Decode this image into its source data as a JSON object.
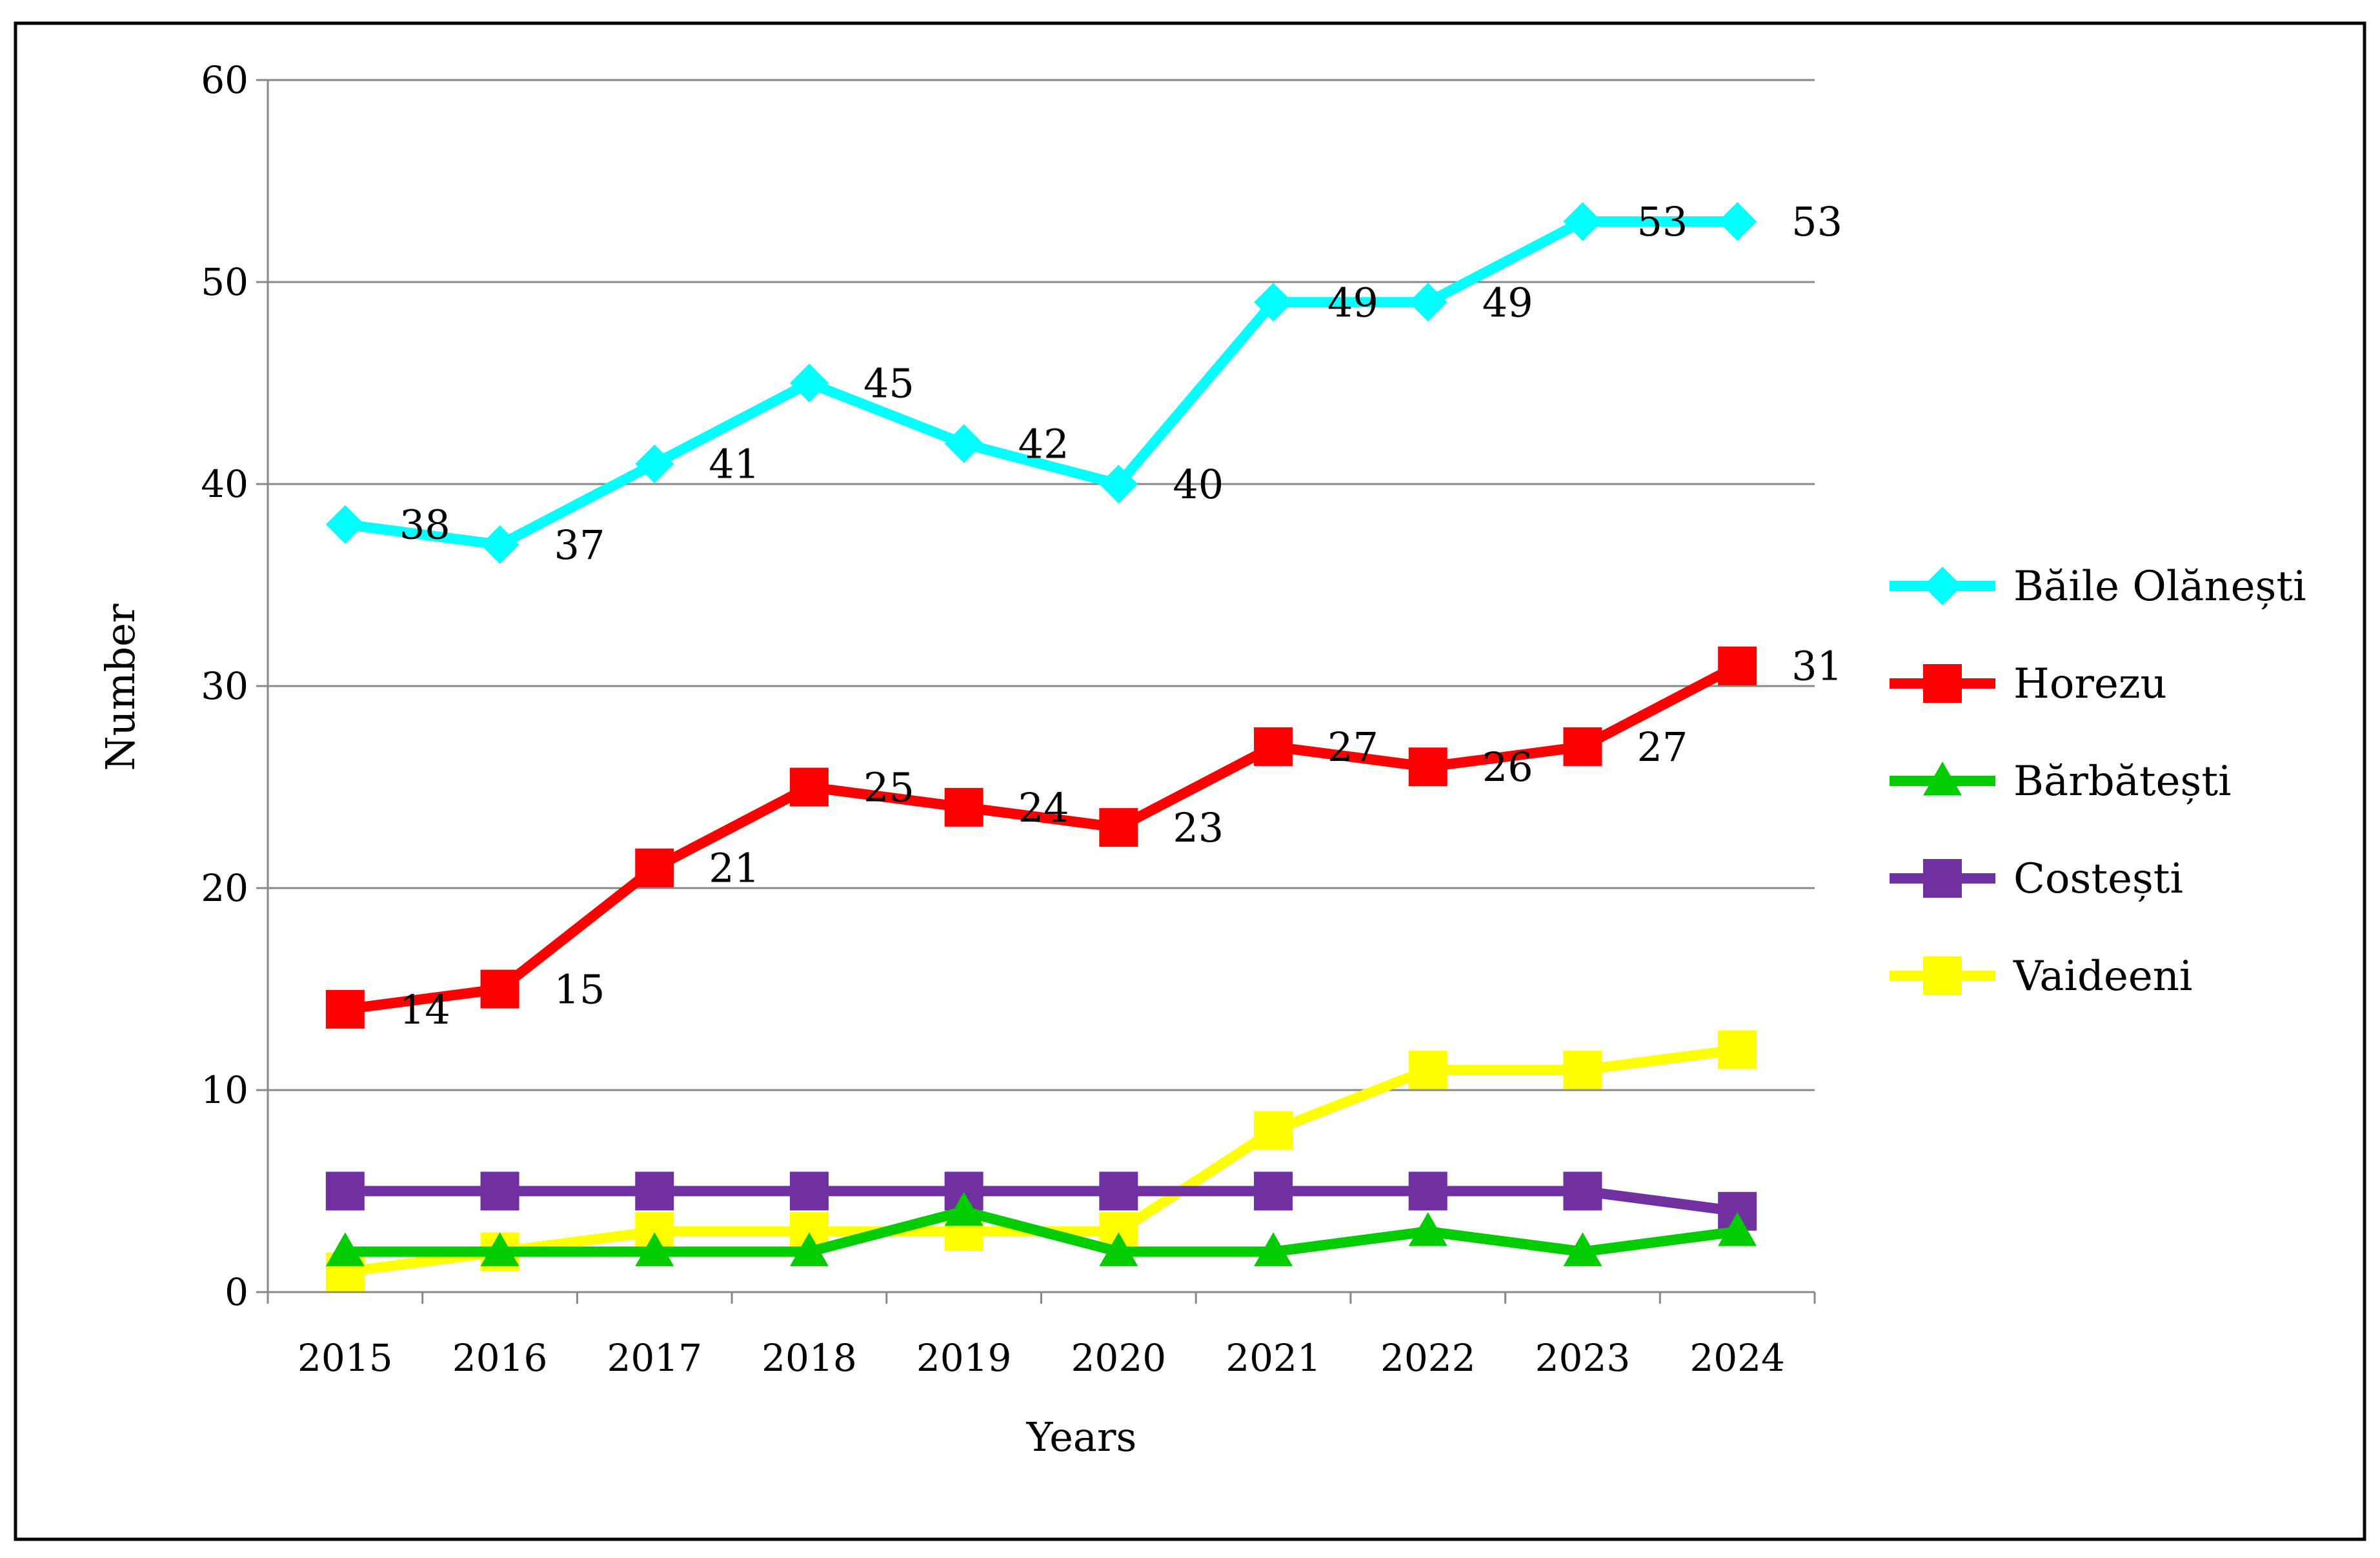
{
  "chart_data": {
    "type": "line",
    "title": "",
    "xlabel": "Years",
    "ylabel": "Number",
    "categories": [
      "2015",
      "2016",
      "2017",
      "2018",
      "2019",
      "2020",
      "2021",
      "2022",
      "2023",
      "2024"
    ],
    "ylim": [
      0,
      60
    ],
    "yticks": [
      0,
      10,
      20,
      30,
      40,
      50,
      60
    ],
    "grid": true,
    "legend_position": "right",
    "series": [
      {
        "name": "Băile Olănești",
        "color": "#00FFFF",
        "marker": "diamond",
        "labeled": true,
        "values": [
          38,
          37,
          41,
          45,
          42,
          40,
          49,
          49,
          53,
          53
        ]
      },
      {
        "name": "Horezu",
        "color": "#FF0000",
        "marker": "square",
        "labeled": true,
        "values": [
          14,
          15,
          21,
          25,
          24,
          23,
          27,
          26,
          27,
          31
        ]
      },
      {
        "name": "Bărbătești",
        "color": "#00CC00",
        "marker": "triangle",
        "labeled": false,
        "values": [
          2,
          2,
          2,
          2,
          4,
          2,
          2,
          3,
          2,
          3
        ]
      },
      {
        "name": "Costești",
        "color": "#7030A0",
        "marker": "square",
        "labeled": false,
        "values": [
          5,
          5,
          5,
          5,
          5,
          5,
          5,
          5,
          5,
          4
        ]
      },
      {
        "name": "Vaideeni",
        "color": "#FFFF00",
        "marker": "square",
        "labeled": false,
        "values": [
          1,
          2,
          3,
          3,
          3,
          3,
          8,
          11,
          11,
          12
        ]
      }
    ]
  }
}
